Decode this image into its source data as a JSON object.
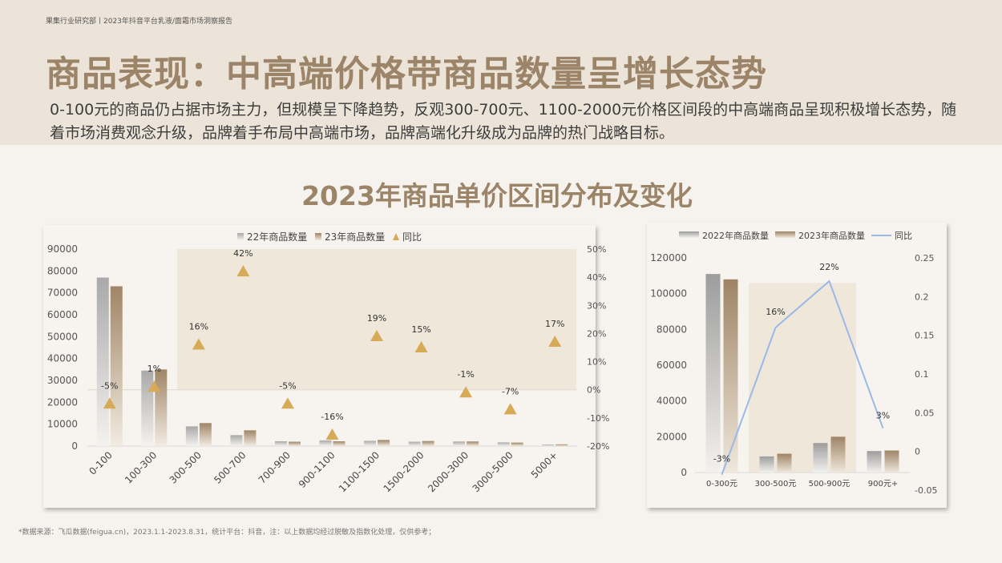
{
  "header": {
    "label": "果集行业研究部丨2023年抖音平台乳液/面霜市场洞察报告",
    "title": "商品表现：中高端价格带商品数量呈增长态势",
    "summary": "0-100元的商品仍占据市场主力，但规模呈下降趋势，反观300-700元、1100-2000元价格区间段的中高端商品呈现积极增长态势，随着市场消费观念升级，品牌着手布局中高端市场，品牌高端化升级成为品牌的热门战略目标。"
  },
  "section": {
    "title": "2023年商品单价区间分布及变化"
  },
  "footer": {
    "source": "*数据来源：飞瓜数据(feigua.cn)，2023.1.1-2023.8.31，统计平台：抖音，注：以上数据均经过脱敏及指数化处理，仅供参考；"
  },
  "colors": {
    "brand": "#9b8468",
    "bar22": "#b4b4b4",
    "bar23": "#a58b6a",
    "marker": "#d7aa58",
    "line": "#9ab8e8",
    "highlight": "#efe7da"
  },
  "chart_data": [
    {
      "type": "bar",
      "legend": [
        "22年商品数量",
        "23年商品数量",
        "同比"
      ],
      "legend_position": "top-center",
      "categories": [
        "0-100",
        "100-300",
        "300-500",
        "500-700",
        "700-900",
        "900-1100",
        "1100-1500",
        "1500-2000",
        "2000-3000",
        "3000-5000",
        "5000+"
      ],
      "series": [
        {
          "name": "22年商品数量",
          "type": "bar",
          "values": [
            77000,
            34500,
            9000,
            5000,
            2200,
            2600,
            2400,
            2000,
            2100,
            1700,
            700
          ]
        },
        {
          "name": "23年商品数量",
          "type": "bar",
          "values": [
            73000,
            35000,
            10500,
            7200,
            2000,
            2200,
            2800,
            2300,
            2100,
            1600,
            800
          ]
        },
        {
          "name": "同比",
          "type": "scatter",
          "axis": "secondary",
          "values": [
            -5,
            1,
            16,
            42,
            -5,
            -16,
            19,
            15,
            -1,
            -7,
            17
          ],
          "labels": [
            "-5%",
            "1%",
            "16%",
            "42%",
            "-5%",
            "-16%",
            "19%",
            "15%",
            "-1%",
            "-7%",
            "17%"
          ]
        }
      ],
      "y_ticks": [
        "90000",
        "80000",
        "70000",
        "60000",
        "50000",
        "40000",
        "30000",
        "20000",
        "10000",
        "0"
      ],
      "y2_ticks": [
        "50%",
        "40%",
        "30%",
        "20%",
        "10%",
        "0%",
        "-10%",
        "-20%"
      ],
      "ylim": [
        0,
        90000
      ],
      "y2lim": [
        -20,
        50
      ],
      "highlight": {
        "from_category": "300-500",
        "to_category": "5000+",
        "y2_from": 0,
        "y2_to": 50
      },
      "grid": false
    },
    {
      "type": "bar",
      "legend": [
        "2022年商品数量",
        "2023年商品数量",
        "同比"
      ],
      "legend_position": "top-center",
      "categories": [
        "0-300元",
        "300-500元",
        "500-900元",
        "900元+"
      ],
      "series": [
        {
          "name": "2022年商品数量",
          "type": "bar",
          "values": [
            111000,
            9000,
            16500,
            12000
          ]
        },
        {
          "name": "2023年商品数量",
          "type": "bar",
          "values": [
            108000,
            10500,
            20000,
            12300
          ]
        },
        {
          "name": "同比",
          "type": "line",
          "axis": "secondary",
          "values": [
            -0.03,
            0.16,
            0.22,
            0.03
          ],
          "labels": [
            "-3%",
            "16%",
            "22%",
            "3%"
          ]
        }
      ],
      "y_ticks": [
        "120000",
        "100000",
        "80000",
        "60000",
        "40000",
        "20000",
        "0"
      ],
      "y2_ticks": [
        "0.25",
        "0.2",
        "0.15",
        "0.1",
        "0.05",
        "0",
        "-0.05"
      ],
      "ylim": [
        0,
        120000
      ],
      "y2lim": [
        -0.05,
        0.25
      ],
      "highlight": {
        "from_category": "300-500元",
        "to_category": "500-900元",
        "y_from": 0,
        "y_to": 106000
      },
      "grid": false
    }
  ]
}
